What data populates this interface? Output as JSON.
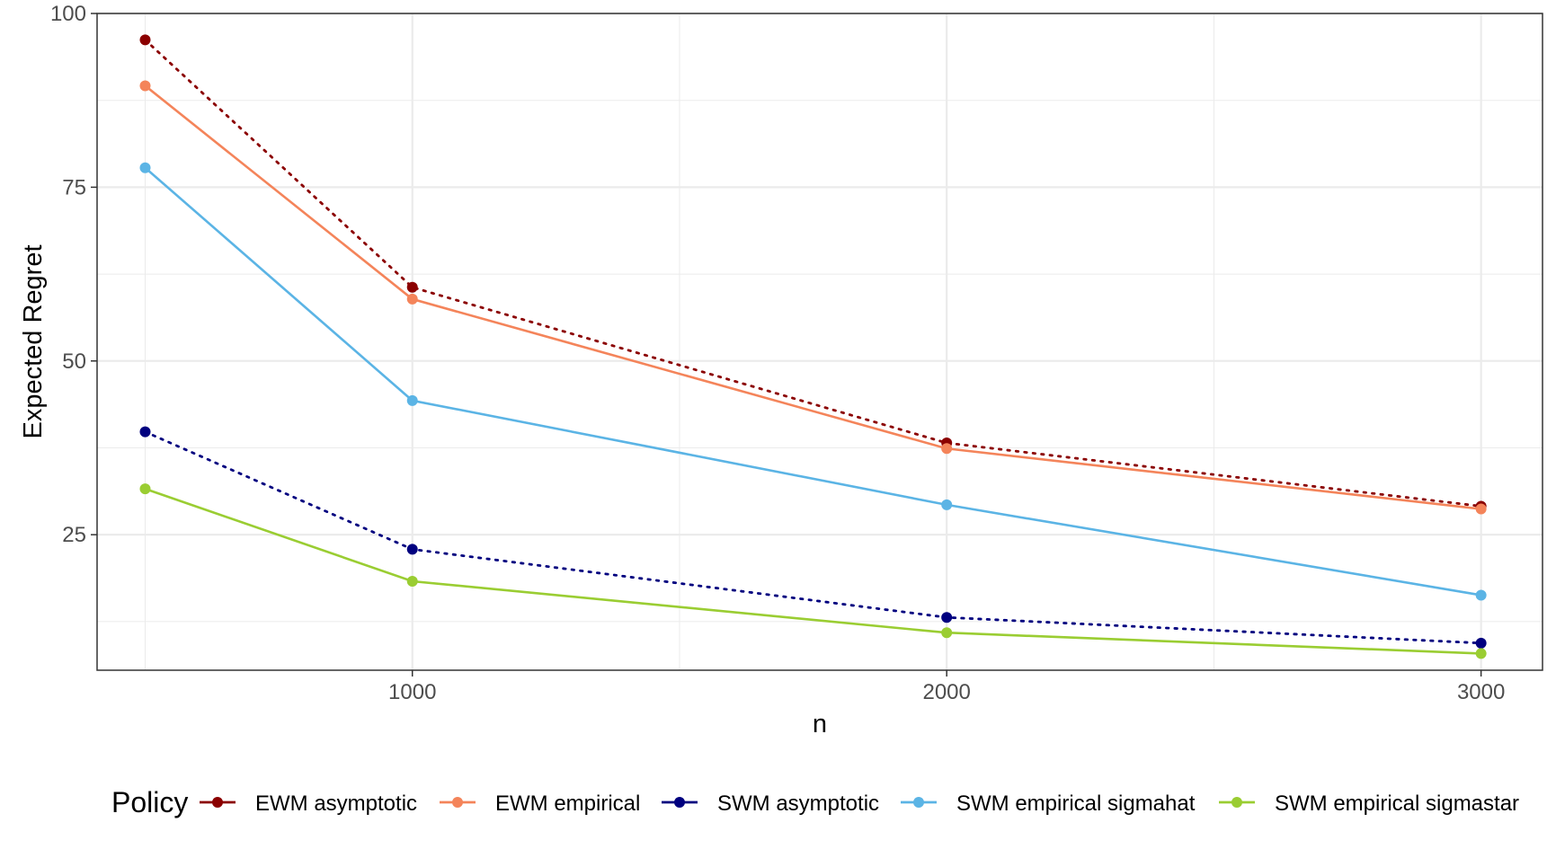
{
  "chart_data": {
    "type": "line",
    "xlabel": "n",
    "ylabel": "Expected Regret",
    "x": [
      500,
      1000,
      2000,
      3000
    ],
    "xlim": [
      410,
      3115
    ],
    "ylim": [
      5.5,
      100
    ],
    "xticks": [
      1000,
      2000,
      3000
    ],
    "xtick_labels": [
      "1000",
      "2000",
      "3000"
    ],
    "yticks": [
      25,
      50,
      75,
      100
    ],
    "ytick_labels": [
      "25",
      "50",
      "75",
      "100"
    ],
    "grid": true,
    "legend_title": "Policy",
    "legend_position": "bottom",
    "series": [
      {
        "name": "EWM asymptotic",
        "color": "#8B0000",
        "dashed": true,
        "values": [
          96.2,
          60.6,
          38.2,
          29.1
        ]
      },
      {
        "name": "EWM empirical",
        "color": "#F4845A",
        "dashed": false,
        "values": [
          89.6,
          58.9,
          37.4,
          28.7
        ]
      },
      {
        "name": "SWM asymptotic",
        "color": "#00007F",
        "dashed": true,
        "values": [
          39.8,
          22.9,
          13.1,
          9.4
        ]
      },
      {
        "name": "SWM empirical sigmahat",
        "color": "#5BB4E5",
        "dashed": false,
        "values": [
          77.8,
          44.3,
          29.3,
          16.3
        ]
      },
      {
        "name": "SWM empirical sigmastar",
        "color": "#9ACD32",
        "dashed": false,
        "values": [
          31.6,
          18.3,
          10.9,
          7.9
        ]
      }
    ]
  }
}
